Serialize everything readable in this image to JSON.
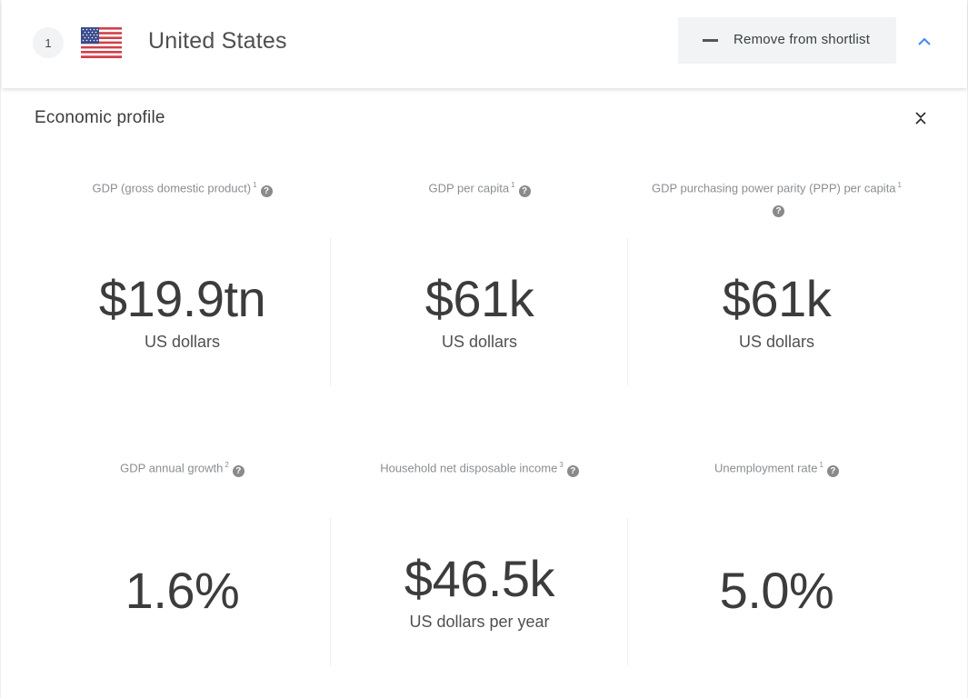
{
  "header": {
    "rank": "1",
    "country": "United States",
    "flag_icon": "us-flag",
    "shortlist_button": "Remove from shortlist"
  },
  "section": {
    "title": "Economic profile"
  },
  "metrics": [
    {
      "label": "GDP (gross domestic product)",
      "note": "1",
      "value": "$19.9tn",
      "unit": "US dollars"
    },
    {
      "label": "GDP per capita",
      "note": "1",
      "value": "$61k",
      "unit": "US dollars"
    },
    {
      "label": "GDP purchasing power parity (PPP) per capita",
      "note": "1",
      "value": "$61k",
      "unit": "US dollars"
    },
    {
      "label": "GDP annual growth",
      "note": "2",
      "value": "1.6%",
      "unit": ""
    },
    {
      "label": "Household net disposable income",
      "note": "3",
      "value": "$46.5k",
      "unit": "US dollars per year"
    },
    {
      "label": "Unemployment rate",
      "note": "1",
      "value": "5.0%",
      "unit": ""
    }
  ],
  "help_glyph": "?",
  "colors": {
    "accent": "#4285f4",
    "button_bg": "#f1f3f4",
    "label": "#8a8e92",
    "value": "#3c3c3c"
  }
}
